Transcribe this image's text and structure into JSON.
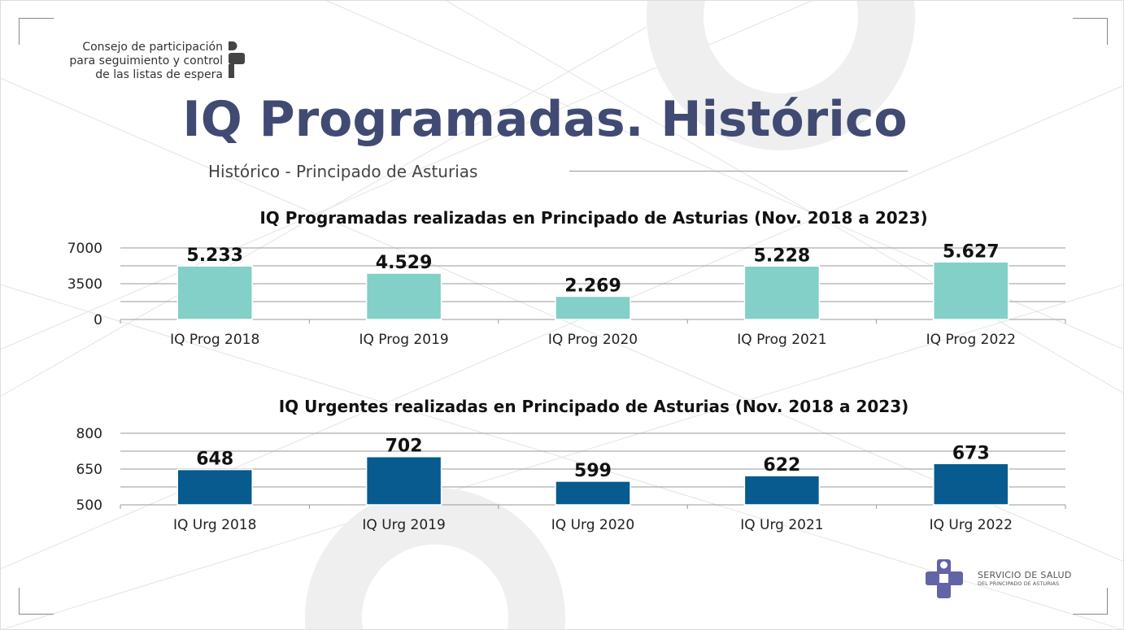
{
  "header": {
    "org_lines": [
      "Consejo de participación",
      "para seguimiento y control",
      "de las listas de espera"
    ],
    "title": "IQ Programadas. Histórico",
    "subtitle": "Histórico - Principado de Asturias"
  },
  "footer": {
    "logo_line1": "SERVICIO DE SALUD",
    "logo_line2": "DEL PRINCIPADO DE ASTURIAS"
  },
  "colors": {
    "title": "#414a72",
    "bar1": "#82d0c8",
    "bar2": "#075b8e",
    "logo": "#6264a8"
  },
  "chart_data": [
    {
      "type": "bar",
      "title": "IQ Programadas realizadas en Principado de Asturias (Nov. 2018 a 2023)",
      "categories": [
        "IQ Prog 2018",
        "IQ Prog 2019",
        "IQ Prog 2020",
        "IQ Prog 2021",
        "IQ Prog 2022"
      ],
      "values": [
        5233,
        4529,
        2269,
        5228,
        5627
      ],
      "data_labels": [
        "5.233",
        "4.529",
        "2.269",
        "5.228",
        "5.627"
      ],
      "ylim": [
        0,
        7000
      ],
      "yticks": [
        0,
        3500,
        7000
      ],
      "gridlines": [
        0,
        1750,
        3500,
        5250,
        7000
      ],
      "xlabel": "",
      "ylabel": ""
    },
    {
      "type": "bar",
      "title": "IQ Urgentes realizadas en Principado de Asturias (Nov. 2018 a 2023)",
      "categories": [
        "IQ Urg 2018",
        "IQ Urg 2019",
        "IQ Urg 2020",
        "IQ Urg 2021",
        "IQ Urg 2022"
      ],
      "values": [
        648,
        702,
        599,
        622,
        673
      ],
      "data_labels": [
        "648",
        "702",
        "599",
        "622",
        "673"
      ],
      "ylim": [
        500,
        800
      ],
      "yticks": [
        500,
        650,
        800
      ],
      "gridlines": [
        500,
        575,
        650,
        725,
        800
      ],
      "xlabel": "",
      "ylabel": ""
    }
  ]
}
